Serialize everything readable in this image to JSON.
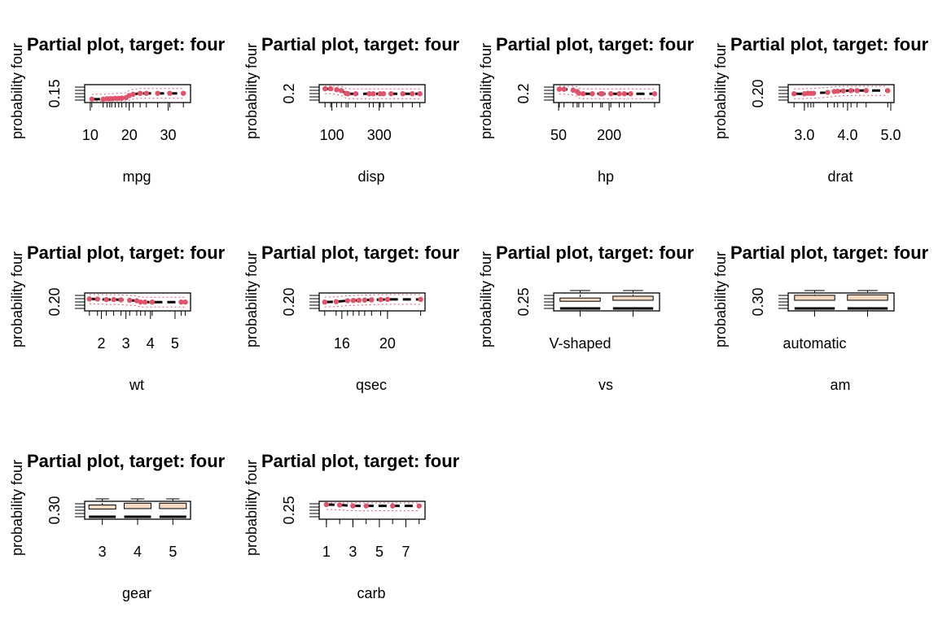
{
  "chart_data": [
    {
      "type": "line",
      "title": "Partial plot, target: four",
      "xlabel": "mpg",
      "ylabel": "probability four",
      "x_ticks": [
        "10",
        "20",
        "30"
      ],
      "x_tick_values": [
        10,
        20,
        30
      ],
      "y_ticks": [
        "0.15"
      ],
      "xlim": [
        9.4,
        34.9
      ],
      "x": [
        10.4,
        13.3,
        14.3,
        15.0,
        15.5,
        16.4,
        17.3,
        18.1,
        19.2,
        20.0,
        21.0,
        22.8,
        24.4,
        27.3,
        30.4,
        33.9
      ],
      "series": [
        {
          "values": [
            0.14,
            0.14,
            0.145,
            0.145,
            0.145,
            0.15,
            0.15,
            0.152,
            0.158,
            0.18,
            0.195,
            0.205,
            0.205,
            0.205,
            0.205,
            0.205
          ]
        }
      ]
    },
    {
      "type": "line",
      "title": "Partial plot, target: four",
      "xlabel": "disp",
      "ylabel": "probability four",
      "x_ticks": [
        "100",
        "300"
      ],
      "x_tick_values": [
        100,
        300
      ],
      "y_ticks": [
        "0.2"
      ],
      "xlim": [
        60,
        480
      ],
      "x": [
        71,
        95,
        120,
        140,
        160,
        168,
        200,
        258,
        275,
        304,
        318,
        350,
        400,
        440,
        472
      ],
      "series": [
        {
          "values": [
            0.255,
            0.255,
            0.245,
            0.235,
            0.205,
            0.2,
            0.2,
            0.2,
            0.2,
            0.2,
            0.2,
            0.2,
            0.2,
            0.2,
            0.2
          ]
        }
      ]
    },
    {
      "type": "line",
      "title": "Partial plot, target: four",
      "xlabel": "hp",
      "ylabel": "probability four",
      "x_ticks": [
        "50",
        "200"
      ],
      "x_tick_values": [
        50,
        200
      ],
      "y_ticks": [
        "0.2"
      ],
      "xlim": [
        45,
        340
      ],
      "x": [
        52,
        66,
        93,
        105,
        110,
        123,
        150,
        175,
        180,
        205,
        230,
        245,
        264,
        335
      ],
      "series": [
        {
          "values": [
            0.25,
            0.25,
            0.24,
            0.225,
            0.205,
            0.2,
            0.2,
            0.2,
            0.2,
            0.2,
            0.2,
            0.2,
            0.2,
            0.2
          ]
        }
      ]
    },
    {
      "type": "line",
      "title": "Partial plot, target: four",
      "xlabel": "drat",
      "ylabel": "probability four",
      "x_ticks": [
        "3.0",
        "4.0",
        "5.0"
      ],
      "x_tick_values": [
        3.0,
        4.0,
        5.0
      ],
      "y_ticks": [
        "0.20"
      ],
      "xlim": [
        2.7,
        5.0
      ],
      "x": [
        2.76,
        3.0,
        3.08,
        3.15,
        3.21,
        3.54,
        3.69,
        3.77,
        3.9,
        4.08,
        4.22,
        4.43,
        4.93
      ],
      "series": [
        {
          "values": [
            0.2,
            0.2,
            0.205,
            0.205,
            0.205,
            0.215,
            0.225,
            0.228,
            0.232,
            0.235,
            0.235,
            0.235,
            0.235
          ]
        }
      ]
    },
    {
      "type": "line",
      "title": "Partial plot, target: four",
      "xlabel": "wt",
      "ylabel": "probability four",
      "x_ticks": [
        "2",
        "3",
        "4",
        "5"
      ],
      "x_tick_values": [
        2,
        3,
        4,
        5
      ],
      "y_ticks": [
        "0.20"
      ],
      "xlim": [
        1.45,
        5.5
      ],
      "x": [
        1.51,
        1.84,
        2.2,
        2.5,
        2.8,
        3.15,
        3.44,
        3.6,
        3.78,
        4.07,
        5.25,
        5.42
      ],
      "series": [
        {
          "values": [
            0.235,
            0.233,
            0.228,
            0.228,
            0.225,
            0.22,
            0.215,
            0.2,
            0.2,
            0.2,
            0.2,
            0.2
          ]
        }
      ]
    },
    {
      "type": "line",
      "title": "Partial plot, target: four",
      "xlabel": "qsec",
      "ylabel": "probability four",
      "x_ticks": [
        "16",
        "20"
      ],
      "x_tick_values": [
        16,
        20
      ],
      "y_ticks": [
        "0.20"
      ],
      "xlim": [
        14.3,
        23.0
      ],
      "x": [
        14.5,
        15.5,
        16.5,
        17.0,
        17.5,
        18.0,
        18.6,
        19.4,
        20.0,
        22.9
      ],
      "series": [
        {
          "values": [
            0.2,
            0.205,
            0.215,
            0.218,
            0.22,
            0.222,
            0.225,
            0.228,
            0.23,
            0.23
          ]
        }
      ]
    },
    {
      "type": "box",
      "title": "Partial plot, target: four",
      "xlabel": "vs",
      "ylabel": "probability four",
      "categories": [
        "V-shaped",
        ""
      ],
      "y_ticks": [
        "0.25"
      ],
      "boxes": [
        {
          "whisker_low": 0.2,
          "q1": 0.21,
          "median": 0.215,
          "q3": 0.245,
          "whisker_high": 0.27
        },
        {
          "whisker_low": 0.2,
          "q1": 0.22,
          "median": 0.235,
          "q3": 0.265,
          "whisker_high": 0.29
        }
      ]
    },
    {
      "type": "box",
      "title": "Partial plot, target: four",
      "xlabel": "am",
      "ylabel": "probability four",
      "categories": [
        "automatic",
        ""
      ],
      "y_ticks": [
        "0.30"
      ],
      "boxes": [
        {
          "whisker_low": 0.2,
          "q1": 0.22,
          "median": 0.23,
          "q3": 0.275,
          "whisker_high": 0.33
        },
        {
          "whisker_low": 0.2,
          "q1": 0.22,
          "median": 0.235,
          "q3": 0.28,
          "whisker_high": 0.33
        }
      ]
    },
    {
      "type": "box",
      "title": "Partial plot, target: four",
      "xlabel": "gear",
      "ylabel": "probability four",
      "categories": [
        "3",
        "4",
        "5"
      ],
      "y_ticks": [
        "0.30"
      ],
      "boxes": [
        {
          "whisker_low": 0.2,
          "q1": 0.215,
          "median": 0.225,
          "q3": 0.26,
          "whisker_high": 0.315
        },
        {
          "whisker_low": 0.2,
          "q1": 0.22,
          "median": 0.23,
          "q3": 0.28,
          "whisker_high": 0.33
        },
        {
          "whisker_low": 0.2,
          "q1": 0.22,
          "median": 0.23,
          "q3": 0.28,
          "whisker_high": 0.33
        }
      ]
    },
    {
      "type": "line",
      "title": "Partial plot, target: four",
      "xlabel": "carb",
      "ylabel": "probability four",
      "x_ticks": [
        "1",
        "3",
        "5",
        "7"
      ],
      "x_tick_values": [
        1,
        3,
        5,
        7
      ],
      "y_ticks": [
        "0.25"
      ],
      "xlim": [
        0.7,
        8.2
      ],
      "x": [
        1,
        2,
        3,
        4,
        6,
        8
      ],
      "series": [
        {
          "values": [
            0.265,
            0.26,
            0.25,
            0.25,
            0.25,
            0.25
          ]
        }
      ]
    }
  ],
  "colors": {
    "line": "#000000",
    "points": "#DF536B",
    "band": "#DF536B",
    "box_fill": "#F6D9C0"
  }
}
